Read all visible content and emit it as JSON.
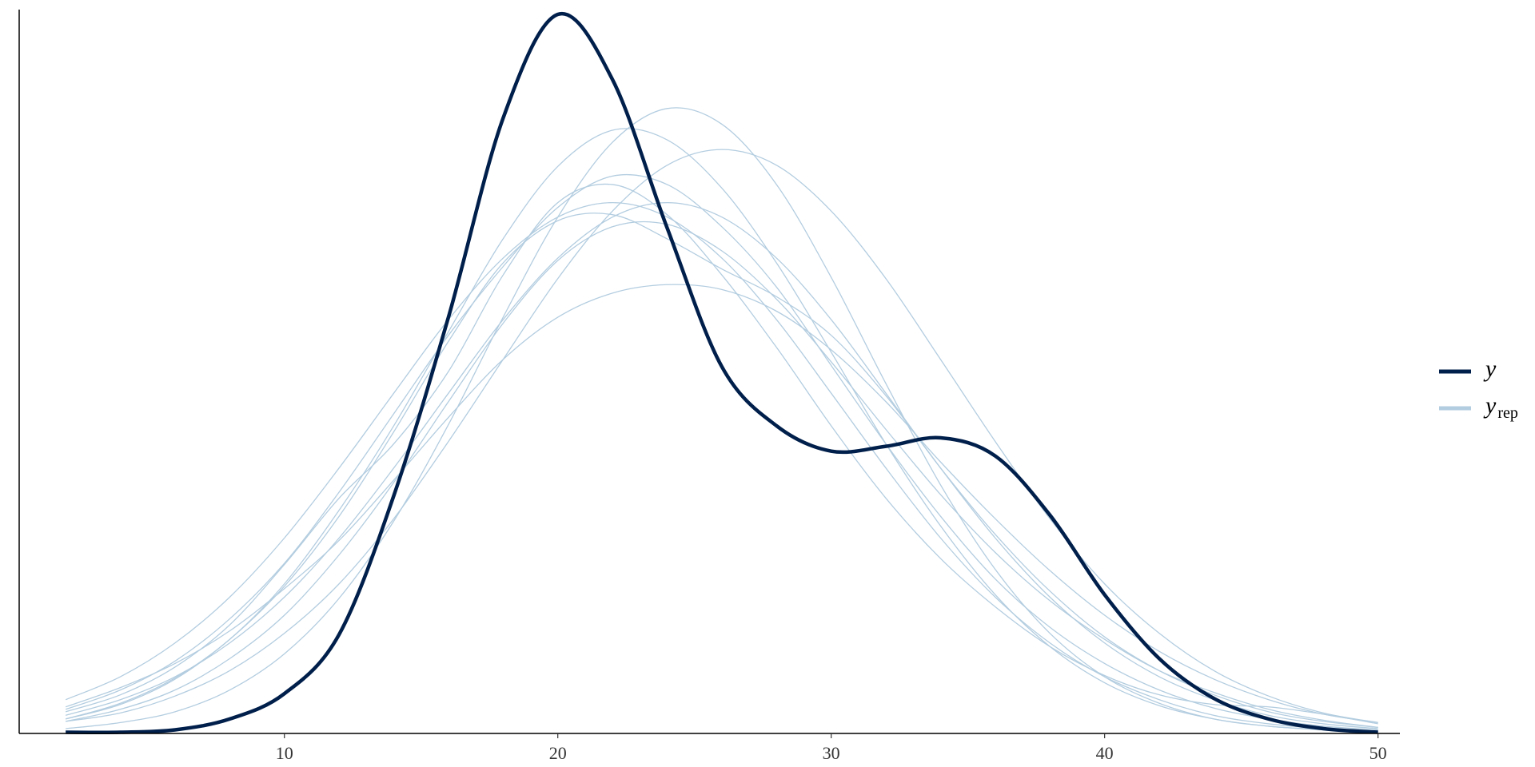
{
  "chart_data": {
    "type": "density_overlay",
    "x": [
      2,
      4,
      6,
      8,
      10,
      12,
      14,
      16,
      18,
      20,
      22,
      24,
      26,
      28,
      30,
      32,
      34,
      36,
      38,
      40,
      42,
      44,
      46,
      48,
      50
    ],
    "xlim": [
      0.3,
      50.8
    ],
    "xticks": [
      10,
      20,
      30,
      40,
      50
    ],
    "ylim": [
      0,
      0.06
    ],
    "series": [
      {
        "name": "y",
        "color": "#011f4b",
        "values": [
          0.0001,
          0.0001,
          0.0003,
          0.0012,
          0.0033,
          0.0082,
          0.0197,
          0.0345,
          0.051,
          0.0596,
          0.0542,
          0.0419,
          0.0304,
          0.0255,
          0.0234,
          0.0238,
          0.0245,
          0.023,
          0.0181,
          0.0115,
          0.0062,
          0.0029,
          0.0012,
          0.0004,
          0.0001
        ]
      }
    ],
    "yrep": {
      "name": "y",
      "subscript": "rep",
      "color": "#b3cde0",
      "values": [
        [
          0.0015,
          0.0028,
          0.0047,
          0.0075,
          0.0113,
          0.0162,
          0.022,
          0.0282,
          0.0343,
          0.0394,
          0.0428,
          0.044,
          0.0428,
          0.0394,
          0.0343,
          0.0282,
          0.022,
          0.0162,
          0.0113,
          0.0075,
          0.0047,
          0.0028,
          0.0015,
          0.0008,
          0.0004
        ],
        [
          0.0028,
          0.0047,
          0.0075,
          0.0113,
          0.0162,
          0.022,
          0.0282,
          0.0343,
          0.0394,
          0.0428,
          0.044,
          0.0428,
          0.0394,
          0.0343,
          0.0282,
          0.022,
          0.0162,
          0.0113,
          0.0075,
          0.0047,
          0.0028,
          0.0015,
          0.0008,
          0.0004,
          0.0002
        ],
        [
          0.001,
          0.0017,
          0.0031,
          0.0052,
          0.0083,
          0.0124,
          0.0178,
          0.0242,
          0.031,
          0.0377,
          0.0433,
          0.0471,
          0.0484,
          0.0471,
          0.0433,
          0.0377,
          0.031,
          0.0242,
          0.0178,
          0.0124,
          0.0083,
          0.0052,
          0.0031,
          0.0017,
          0.0009
        ],
        [
          0.002,
          0.0036,
          0.006,
          0.0095,
          0.0141,
          0.02,
          0.0265,
          0.033,
          0.0387,
          0.0436,
          0.0462,
          0.0455,
          0.042,
          0.037,
          0.0305,
          0.024,
          0.018,
          0.0128,
          0.0088,
          0.0058,
          0.0036,
          0.0021,
          0.0012,
          0.0006,
          0.0003
        ],
        [
          0.0022,
          0.0038,
          0.0058,
          0.0085,
          0.012,
          0.016,
          0.021,
          0.0262,
          0.031,
          0.0345,
          0.0365,
          0.0372,
          0.0368,
          0.035,
          0.0318,
          0.0275,
          0.0225,
          0.0178,
          0.0135,
          0.0098,
          0.0068,
          0.0045,
          0.0028,
          0.0016,
          0.0009
        ],
        [
          0.0012,
          0.0024,
          0.0045,
          0.0078,
          0.0122,
          0.018,
          0.025,
          0.0325,
          0.039,
          0.0425,
          0.043,
          0.041,
          0.0385,
          0.0362,
          0.033,
          0.028,
          0.022,
          0.0165,
          0.0118,
          0.008,
          0.0052,
          0.0032,
          0.0018,
          0.001,
          0.0005
        ],
        [
          0.0004,
          0.0009,
          0.0018,
          0.0036,
          0.0066,
          0.0112,
          0.0176,
          0.0256,
          0.0345,
          0.0428,
          0.049,
          0.0518,
          0.0505,
          0.0455,
          0.0378,
          0.029,
          0.0206,
          0.0136,
          0.0083,
          0.0047,
          0.0025,
          0.0012,
          0.0006,
          0.0003,
          0.0001
        ],
        [
          0.0018,
          0.0032,
          0.0055,
          0.009,
          0.014,
          0.0195,
          0.024,
          0.03,
          0.038,
          0.044,
          0.0455,
          0.043,
          0.038,
          0.032,
          0.0255,
          0.0195,
          0.0145,
          0.0105,
          0.0072,
          0.0048,
          0.0032,
          0.0024,
          0.0022,
          0.0016,
          0.0008
        ],
        [
          0.001,
          0.002,
          0.0036,
          0.0062,
          0.0098,
          0.0148,
          0.0208,
          0.0275,
          0.034,
          0.0392,
          0.042,
          0.0422,
          0.04,
          0.036,
          0.0308,
          0.0252,
          0.0198,
          0.015,
          0.011,
          0.0078,
          0.0052,
          0.0034,
          0.002,
          0.0011,
          0.0005
        ],
        [
          0.0012,
          0.0025,
          0.0046,
          0.0078,
          0.0124,
          0.0185,
          0.0255,
          0.0333,
          0.041,
          0.047,
          0.05,
          0.0492,
          0.0452,
          0.039,
          0.0316,
          0.024,
          0.0172,
          0.0115,
          0.0072,
          0.0042,
          0.0023,
          0.0012,
          0.0006,
          0.0003,
          0.0001
        ]
      ]
    }
  }
}
